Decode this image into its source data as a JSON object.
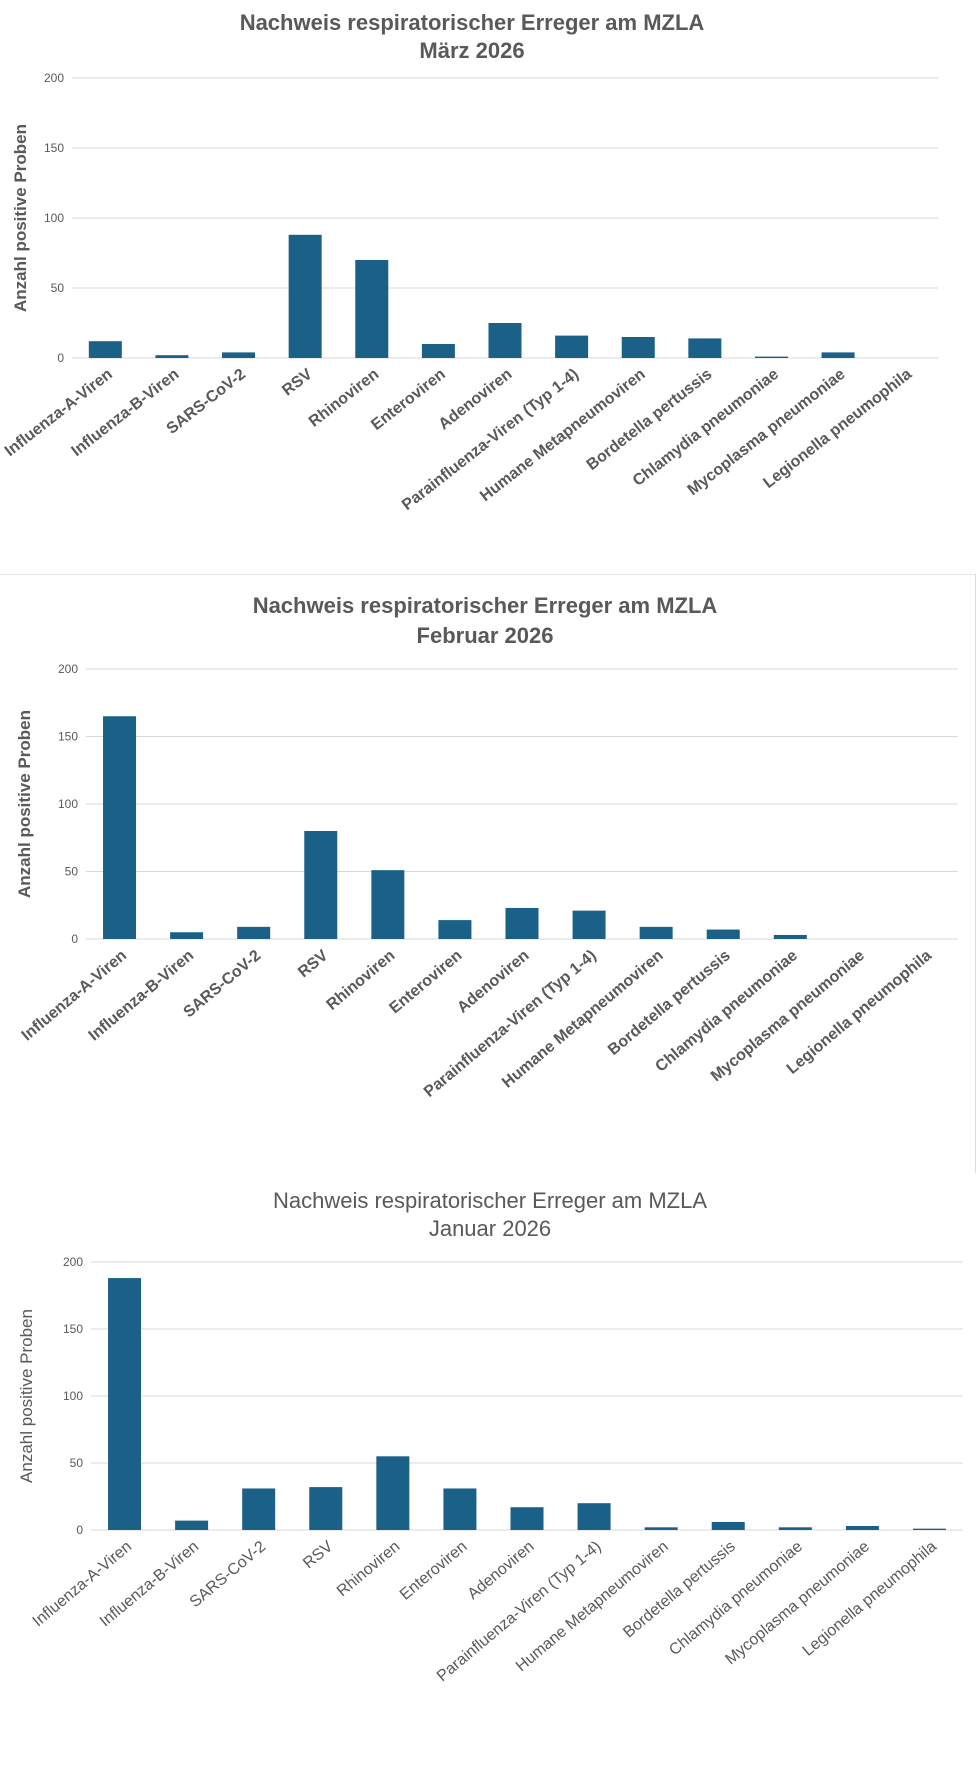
{
  "chart_data": [
    {
      "type": "bar",
      "title_line1": "Nachweis respiratorischer Erreger am MZLA",
      "title_line2": "März 2026",
      "ylabel": "Anzahl positive Proben",
      "ylim": [
        0,
        200
      ],
      "yticks": [
        "0",
        "50",
        "100",
        "150",
        "200"
      ],
      "grid": true,
      "color": "#1a6087",
      "categories": [
        "Influenza-A-Viren",
        "Influenza-B-Viren",
        "SARS-CoV-2",
        "RSV",
        "Rhinoviren",
        "Enteroviren",
        "Adenoviren",
        "Parainfluenza-Viren (Typ 1-4)",
        "Humane Metapneumoviren",
        "Bordetella pertussis",
        "Chlamydia pneumoniae",
        "Mycoplasma pneumoniae",
        "Legionella pneumophila"
      ],
      "values": [
        12,
        2,
        4,
        88,
        70,
        10,
        25,
        16,
        15,
        14,
        1,
        4,
        0
      ]
    },
    {
      "type": "bar",
      "title_line1": "Nachweis respiratorischer Erreger am MZLA",
      "title_line2": "Februar 2026",
      "ylabel": "Anzahl positive Proben",
      "ylim": [
        0,
        200
      ],
      "yticks": [
        "0",
        "50",
        "100",
        "150",
        "200"
      ],
      "grid": true,
      "color": "#1a6087",
      "categories": [
        "Influenza-A-Viren",
        "Influenza-B-Viren",
        "SARS-CoV-2",
        "RSV",
        "Rhinoviren",
        "Enteroviren",
        "Adenoviren",
        "Parainfluenza-Viren (Typ 1-4)",
        "Humane Metapneumoviren",
        "Bordetella pertussis",
        "Chlamydia pneumoniae",
        "Mycoplasma pneumoniae",
        "Legionella pneumophila"
      ],
      "values": [
        165,
        5,
        9,
        80,
        51,
        14,
        23,
        21,
        9,
        7,
        3,
        0,
        0
      ]
    },
    {
      "type": "bar",
      "title_line1": "Nachweis respiratorischer Erreger am MZLA",
      "title_line2": "Januar 2026",
      "ylabel": "Anzahl positive Proben",
      "ylim": [
        0,
        200
      ],
      "yticks": [
        "0",
        "50",
        "100",
        "150",
        "200"
      ],
      "grid": true,
      "color": "#1a6087",
      "categories": [
        "Influenza-A-Viren",
        "Influenza-B-Viren",
        "SARS-CoV-2",
        "RSV",
        "Rhinoviren",
        "Enteroviren",
        "Adenoviren",
        "Parainfluenza-Viren (Typ 1-4)",
        "Humane Metapneumoviren",
        "Bordetella pertussis",
        "Chlamydia pneumoniae",
        "Mycoplasma pneumoniae",
        "Legionella pneumophila"
      ],
      "values": [
        188,
        7,
        31,
        32,
        55,
        31,
        17,
        20,
        2,
        6,
        2,
        3,
        1
      ]
    }
  ]
}
